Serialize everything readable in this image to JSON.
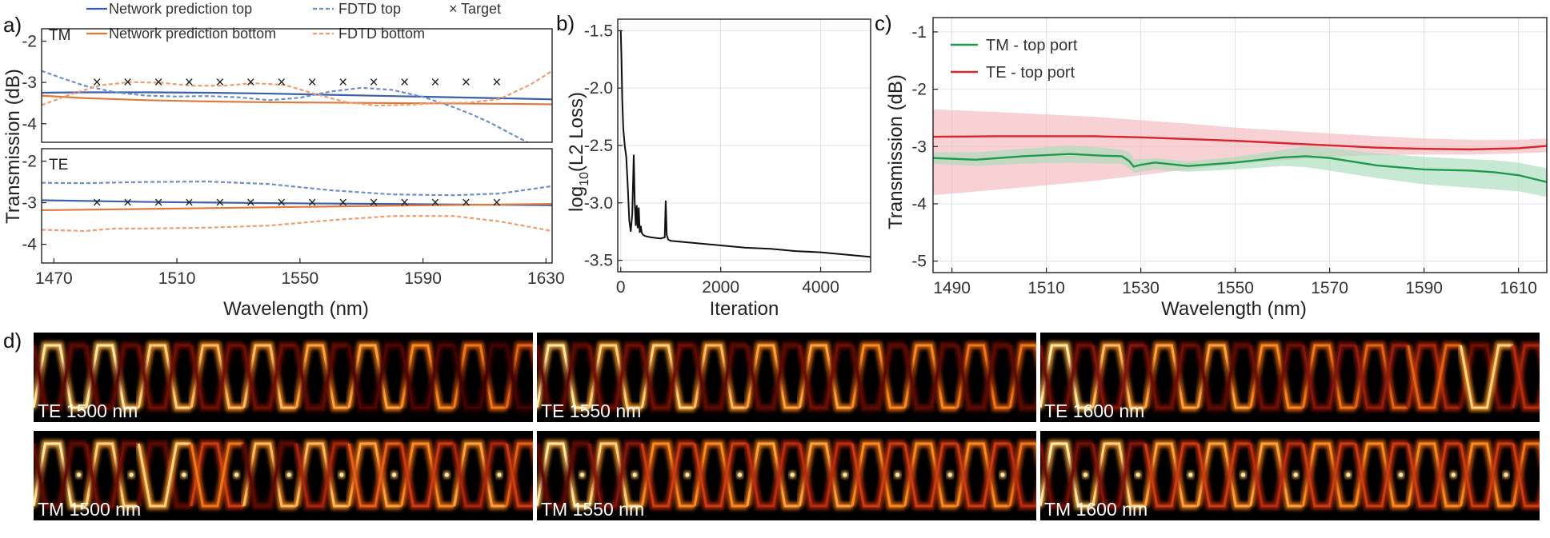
{
  "colors": {
    "net_top": "#3b5fa8",
    "net_bottom": "#e07a3c",
    "fdtd_top": "#6d8fc9",
    "fdtd_bottom": "#ef9d6f",
    "target": "#777777",
    "tm_top_port": "#1f9a4c",
    "te_top_port": "#d6262f",
    "tm_band": "#a9dcbb",
    "te_band": "#f4b9bf"
  },
  "panel_labels": {
    "a": "a)",
    "b": "b)",
    "c": "c)",
    "d": "d)"
  },
  "legend_a": {
    "net_top": "Network prediction top",
    "net_bottom": "Network prediction bottom",
    "fdtd_top": "FDTD top",
    "fdtd_bottom": "FDTD bottom",
    "target": "Target",
    "target_marker": "×"
  },
  "chart_data": [
    {
      "id": "a-tm",
      "type": "line",
      "sublabel": "TM",
      "xlim": [
        1466,
        1632
      ],
      "ylim": [
        -4.45,
        -1.7
      ],
      "yticks": [
        -2,
        -3,
        -4
      ],
      "ytick_labels": [
        "-2",
        "-3",
        "-4"
      ],
      "series": [
        {
          "name": "Network prediction top",
          "style": "solid",
          "color_key": "net_top",
          "x": [
            1466,
            1480,
            1500,
            1520,
            1540,
            1560,
            1580,
            1600,
            1620,
            1632
          ],
          "y": [
            -3.25,
            -3.24,
            -3.24,
            -3.25,
            -3.27,
            -3.3,
            -3.33,
            -3.36,
            -3.39,
            -3.41
          ]
        },
        {
          "name": "Network prediction bottom",
          "style": "solid",
          "color_key": "net_bottom",
          "x": [
            1466,
            1480,
            1500,
            1520,
            1540,
            1560,
            1580,
            1600,
            1620,
            1632
          ],
          "y": [
            -3.32,
            -3.38,
            -3.43,
            -3.46,
            -3.48,
            -3.49,
            -3.5,
            -3.51,
            -3.52,
            -3.53
          ]
        },
        {
          "name": "FDTD top",
          "style": "dashed",
          "color_key": "fdtd_top",
          "x": [
            1466,
            1472,
            1480,
            1490,
            1500,
            1510,
            1520,
            1530,
            1540,
            1550,
            1560,
            1570,
            1580,
            1590,
            1600,
            1606,
            1612,
            1618,
            1624
          ],
          "y": [
            -2.72,
            -2.88,
            -3.08,
            -3.24,
            -3.32,
            -3.34,
            -3.33,
            -3.36,
            -3.43,
            -3.37,
            -3.22,
            -3.13,
            -3.18,
            -3.35,
            -3.6,
            -3.78,
            -3.98,
            -4.22,
            -4.45
          ]
        },
        {
          "name": "FDTD bottom",
          "style": "dashed",
          "color_key": "fdtd_bottom",
          "x": [
            1466,
            1475,
            1485,
            1495,
            1505,
            1515,
            1525,
            1535,
            1545,
            1555,
            1565,
            1575,
            1585,
            1595,
            1605,
            1615,
            1625,
            1632
          ],
          "y": [
            -3.55,
            -3.3,
            -3.07,
            -2.99,
            -3.01,
            -3.08,
            -3.08,
            -3.02,
            -3.06,
            -3.28,
            -3.48,
            -3.56,
            -3.54,
            -3.5,
            -3.49,
            -3.4,
            -3.05,
            -2.72
          ]
        },
        {
          "name": "Target",
          "style": "marker",
          "color_key": "target",
          "x": [
            1484,
            1494,
            1504,
            1514,
            1524,
            1534,
            1544,
            1554,
            1564,
            1574,
            1584,
            1594,
            1604,
            1614
          ],
          "y": [
            -3,
            -3,
            -3,
            -3,
            -3,
            -3,
            -3,
            -3,
            -3,
            -3,
            -3,
            -3,
            -3,
            -3
          ]
        }
      ]
    },
    {
      "id": "a-te",
      "type": "line",
      "sublabel": "TE",
      "xlim": [
        1466,
        1632
      ],
      "ylim": [
        -4.45,
        -1.7
      ],
      "yticks": [
        -2,
        -3,
        -4
      ],
      "ytick_labels": [
        "-2",
        "-3",
        "-4"
      ],
      "xticks": [
        1470,
        1510,
        1550,
        1590,
        1630
      ],
      "xtick_labels": [
        "1470",
        "1510",
        "1550",
        "1590",
        "1630"
      ],
      "xlabel": "Wavelength (nm)",
      "series": [
        {
          "name": "Network prediction top",
          "style": "solid",
          "color_key": "net_top",
          "x": [
            1466,
            1500,
            1540,
            1580,
            1632
          ],
          "y": [
            -2.94,
            -2.98,
            -3.01,
            -3.03,
            -3.06
          ]
        },
        {
          "name": "Network prediction bottom",
          "style": "solid",
          "color_key": "net_bottom",
          "x": [
            1466,
            1500,
            1540,
            1580,
            1632
          ],
          "y": [
            -3.18,
            -3.15,
            -3.11,
            -3.07,
            -3.03
          ]
        },
        {
          "name": "FDTD top",
          "style": "dashed",
          "color_key": "fdtd_top",
          "x": [
            1466,
            1480,
            1500,
            1520,
            1540,
            1560,
            1580,
            1600,
            1615,
            1632
          ],
          "y": [
            -2.52,
            -2.53,
            -2.5,
            -2.49,
            -2.55,
            -2.7,
            -2.8,
            -2.82,
            -2.78,
            -2.6
          ]
        },
        {
          "name": "FDTD bottom",
          "style": "dashed",
          "color_key": "fdtd_bottom",
          "x": [
            1466,
            1480,
            1490,
            1500,
            1520,
            1540,
            1560,
            1580,
            1600,
            1615,
            1632
          ],
          "y": [
            -3.65,
            -3.68,
            -3.62,
            -3.62,
            -3.6,
            -3.55,
            -3.42,
            -3.32,
            -3.32,
            -3.45,
            -3.68
          ]
        },
        {
          "name": "Target",
          "style": "marker",
          "color_key": "target",
          "x": [
            1484,
            1494,
            1504,
            1514,
            1524,
            1534,
            1544,
            1554,
            1564,
            1574,
            1584,
            1594,
            1604,
            1614
          ],
          "y": [
            -3,
            -3,
            -3,
            -3,
            -3,
            -3,
            -3,
            -3,
            -3,
            -3,
            -3,
            -3,
            -3,
            -3
          ]
        }
      ]
    },
    {
      "id": "b",
      "type": "line",
      "xlim": [
        -60,
        5000
      ],
      "ylim": [
        -3.6,
        -1.4
      ],
      "xticks": [
        0,
        2000,
        4000
      ],
      "xtick_labels": [
        "0",
        "2000",
        "4000"
      ],
      "yticks": [
        -1.5,
        -2.0,
        -2.5,
        -3.0,
        -3.5
      ],
      "ytick_labels": [
        "-1.5",
        "-2.0",
        "-2.5",
        "-3.0",
        "-3.5"
      ],
      "xlabel": "Iteration",
      "ylabel": "log10(L2 Loss)",
      "ylabel_base": "log",
      "ylabel_sub": "10",
      "ylabel_rest": "(L2 Loss)",
      "series": [
        {
          "name": "loss",
          "color": "#111111",
          "x": [
            0,
            15,
            30,
            50,
            80,
            110,
            140,
            170,
            200,
            230,
            260,
            280,
            300,
            320,
            340,
            360,
            380,
            400,
            420,
            450,
            500,
            600,
            800,
            880,
            900,
            920,
            950,
            1000,
            1500,
            2000,
            2500,
            3000,
            3500,
            4000,
            4500,
            5000
          ],
          "y": [
            -1.5,
            -1.75,
            -2.1,
            -2.35,
            -2.5,
            -2.6,
            -2.85,
            -3.15,
            -3.25,
            -3.1,
            -2.58,
            -3.0,
            -3.2,
            -3.02,
            -3.22,
            -3.04,
            -3.26,
            -3.2,
            -3.26,
            -3.28,
            -3.29,
            -3.3,
            -3.31,
            -3.3,
            -2.98,
            -3.28,
            -3.32,
            -3.33,
            -3.35,
            -3.37,
            -3.39,
            -3.4,
            -3.42,
            -3.43,
            -3.45,
            -3.47
          ]
        }
      ]
    },
    {
      "id": "c",
      "type": "line",
      "xlim": [
        1486,
        1616
      ],
      "ylim": [
        -5.2,
        -0.75
      ],
      "xticks": [
        1490,
        1510,
        1530,
        1550,
        1570,
        1590,
        1610
      ],
      "xtick_labels": [
        "1490",
        "1510",
        "1530",
        "1550",
        "1570",
        "1590",
        "1610"
      ],
      "yticks": [
        -1,
        -2,
        -3,
        -4,
        -5
      ],
      "ytick_labels": [
        "-1",
        "-2",
        "-3",
        "-4",
        "-5"
      ],
      "xlabel": "Wavelength (nm)",
      "ylabel": "Transmission (dB)",
      "legend": {
        "position": "top-left",
        "entries": [
          "TM - top port",
          "TE - top port"
        ]
      },
      "series": [
        {
          "name": "TM - top port",
          "color_key": "tm_top_port",
          "band_key": "tm_band",
          "x": [
            1486,
            1495,
            1505,
            1515,
            1522,
            1526,
            1527.5,
            1528.5,
            1530,
            1533,
            1540,
            1550,
            1560,
            1565,
            1570,
            1580,
            1590,
            1600,
            1605,
            1610,
            1616
          ],
          "y": [
            -3.2,
            -3.23,
            -3.17,
            -3.13,
            -3.16,
            -3.17,
            -3.25,
            -3.35,
            -3.32,
            -3.28,
            -3.34,
            -3.28,
            -3.19,
            -3.17,
            -3.2,
            -3.33,
            -3.4,
            -3.42,
            -3.45,
            -3.5,
            -3.62
          ],
          "band_upper": [
            -3.1,
            -3.1,
            -3.04,
            -2.98,
            -3.02,
            -3.06,
            -3.1,
            -3.22,
            -3.22,
            -3.2,
            -3.26,
            -3.18,
            -3.06,
            -3.0,
            -3.02,
            -3.12,
            -3.18,
            -3.22,
            -3.24,
            -3.28,
            -3.38
          ],
          "band_lower": [
            -3.3,
            -3.34,
            -3.3,
            -3.28,
            -3.3,
            -3.3,
            -3.38,
            -3.46,
            -3.44,
            -3.4,
            -3.44,
            -3.4,
            -3.34,
            -3.36,
            -3.42,
            -3.55,
            -3.66,
            -3.72,
            -3.75,
            -3.78,
            -3.88
          ]
        },
        {
          "name": "TE - top port",
          "color_key": "te_top_port",
          "band_key": "te_band",
          "x": [
            1486,
            1500,
            1520,
            1530,
            1540,
            1550,
            1560,
            1570,
            1580,
            1590,
            1600,
            1610,
            1616
          ],
          "y": [
            -2.83,
            -2.82,
            -2.82,
            -2.84,
            -2.87,
            -2.9,
            -2.94,
            -2.98,
            -3.02,
            -3.04,
            -3.05,
            -3.03,
            -2.99
          ],
          "band_upper": [
            -2.35,
            -2.4,
            -2.48,
            -2.54,
            -2.6,
            -2.67,
            -2.72,
            -2.77,
            -2.82,
            -2.86,
            -2.88,
            -2.88,
            -2.86
          ],
          "band_lower": [
            -3.85,
            -3.75,
            -3.6,
            -3.5,
            -3.4,
            -3.3,
            -3.24,
            -3.18,
            -3.15,
            -3.14,
            -3.14,
            -3.12,
            -3.1
          ]
        }
      ]
    }
  ],
  "panel_a": {
    "ylabel": "Transmission (dB)"
  },
  "panel_d": {
    "fields": [
      {
        "label": "TE 1500 nm",
        "top": [
          1.0,
          1.0,
          0.95,
          0.9,
          0.9,
          0.85,
          0.85,
          0.8,
          0.75,
          0.7
        ],
        "bottom": [
          0.3,
          0.3,
          0.35,
          0.35,
          0.35,
          0.3,
          0.25,
          0.25,
          0.2,
          0.2
        ],
        "spots": 0
      },
      {
        "label": "TE 1550 nm",
        "top": [
          1.0,
          0.95,
          0.95,
          0.9,
          0.85,
          0.85,
          0.8,
          0.8,
          0.75,
          0.75
        ],
        "bottom": [
          0.3,
          0.35,
          0.35,
          0.3,
          0.3,
          0.35,
          0.3,
          0.3,
          0.3,
          0.3
        ],
        "spots": 0
      },
      {
        "label": "TE 1600 nm",
        "top": [
          1.0,
          0.9,
          0.85,
          0.85,
          0.8,
          0.75,
          0.7,
          0.5,
          0.35,
          0.5
        ],
        "bottom": [
          0.35,
          0.4,
          0.35,
          0.3,
          0.35,
          0.4,
          0.45,
          0.7,
          0.95,
          0.55
        ],
        "spots": 0
      },
      {
        "label": "TM 1500 nm",
        "top": [
          1.0,
          0.95,
          0.3,
          0.6,
          0.9,
          0.9,
          0.85,
          0.8,
          0.85,
          0.7
        ],
        "bottom": [
          0.3,
          0.35,
          0.95,
          0.75,
          0.3,
          0.5,
          0.7,
          0.6,
          0.5,
          0.6
        ],
        "spots": 1
      },
      {
        "label": "TM 1550 nm",
        "top": [
          1.0,
          0.95,
          0.8,
          0.8,
          0.85,
          0.85,
          0.8,
          0.8,
          0.8,
          0.75
        ],
        "bottom": [
          0.3,
          0.4,
          0.6,
          0.6,
          0.55,
          0.55,
          0.6,
          0.6,
          0.6,
          0.55
        ],
        "spots": 1
      },
      {
        "label": "TM 1600 nm",
        "top": [
          1.0,
          0.95,
          0.85,
          0.85,
          0.85,
          0.8,
          0.8,
          0.8,
          0.8,
          0.75
        ],
        "bottom": [
          0.35,
          0.4,
          0.6,
          0.6,
          0.55,
          0.6,
          0.6,
          0.6,
          0.6,
          0.6
        ],
        "spots": 1
      }
    ]
  }
}
